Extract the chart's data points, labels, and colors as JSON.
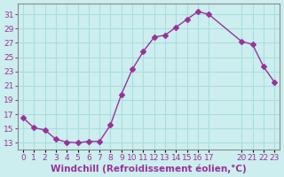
{
  "x": [
    0,
    1,
    2,
    3,
    4,
    5,
    6,
    7,
    8,
    9,
    10,
    11,
    12,
    13,
    14,
    15,
    16,
    17,
    20,
    21,
    22,
    23
  ],
  "y": [
    16.5,
    15.1,
    14.8,
    13.5,
    13.1,
    13.0,
    13.2,
    13.2,
    15.5,
    19.8,
    23.3,
    25.8,
    27.8,
    28.1,
    29.2,
    30.3,
    31.4,
    31.0,
    27.2,
    26.8,
    23.7,
    21.5
  ],
  "line_color": "#993399",
  "marker": "D",
  "marker_size": 3,
  "bg_color": "#cceeee",
  "grid_color": "#aadddd",
  "xlabel": "Windchill (Refroidissement éolien,°C)",
  "xlabel_fontsize": 7.5,
  "tick_fontsize": 6.5,
  "yticks": [
    13,
    15,
    17,
    19,
    21,
    23,
    25,
    27,
    29,
    31
  ],
  "xtick_positions": [
    0,
    1,
    2,
    3,
    4,
    5,
    6,
    7,
    8,
    9,
    10,
    11,
    12,
    13,
    14,
    15,
    16,
    17,
    20,
    21,
    22,
    23
  ],
  "xtick_labels": [
    "0",
    "1",
    "2",
    "3",
    "4",
    "5",
    "6",
    "7",
    "8",
    "9",
    "10",
    "11",
    "12",
    "13",
    "14",
    "15",
    "16",
    "17",
    "20",
    "21",
    "22",
    "23"
  ],
  "ylim": [
    12,
    32.5
  ],
  "xlim": [
    -0.5,
    23.5
  ]
}
